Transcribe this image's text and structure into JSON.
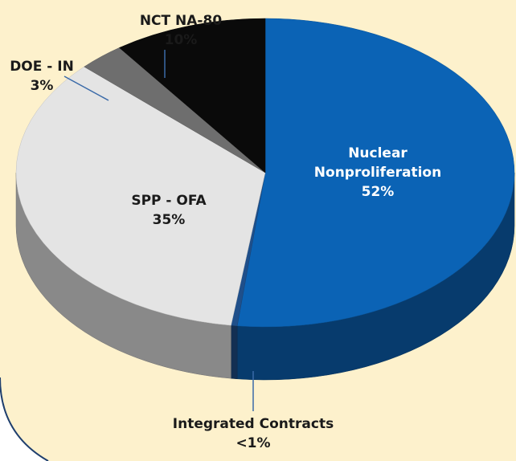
{
  "chart_data": {
    "type": "pie",
    "categories": [
      "Nuclear Nonproliferation",
      "Integrated Contracts",
      "SPP - OFA",
      "DOE - IN",
      "NCT NA-80"
    ],
    "values": [
      52,
      0.4,
      35,
      3,
      10
    ],
    "value_labels": [
      "52%",
      "<1%",
      "35%",
      "3%",
      "10%"
    ],
    "colors": [
      "#0b63b5",
      "#1f4f8a",
      "#e4e4e4",
      "#6e6e6e",
      "#0a0a0a"
    ]
  }
}
